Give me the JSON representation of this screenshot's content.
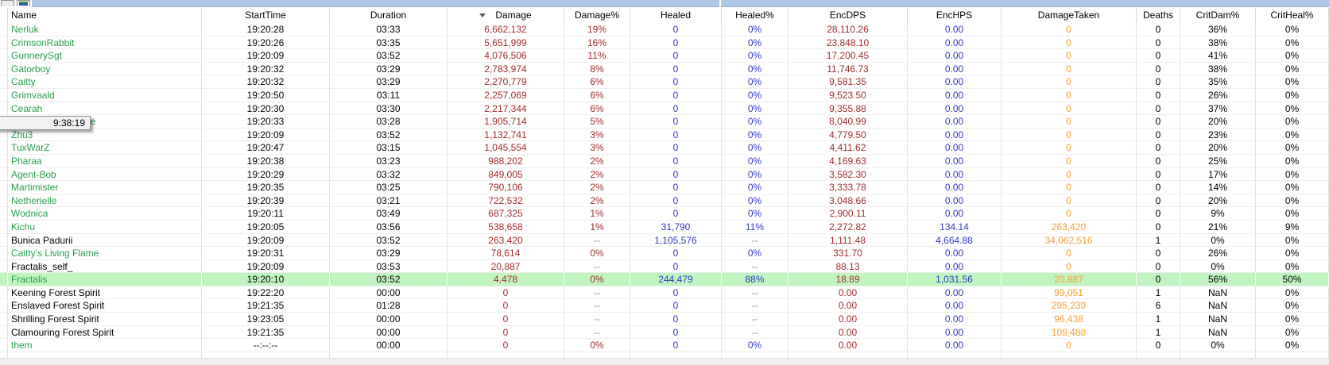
{
  "topbar": {
    "tabs": [
      {
        "icon": "blank-tab-icon"
      },
      {
        "icon": "graph-tab-icon"
      }
    ]
  },
  "tooltip": {
    "text": "9:38:19"
  },
  "colors": {
    "name_green": "#28a04c",
    "damage_red": "#a02c2c",
    "heal_blue": "#3038c8",
    "taken_orange": "#f7a035",
    "dash_lavender": "#8484cf",
    "selected_row_bg": "#c1f4c0",
    "topbar_blue": "#adc7e7"
  },
  "table": {
    "sort": {
      "column": "Damage",
      "direction": "descending"
    },
    "columns": [
      {
        "key": "name",
        "label": "Name"
      },
      {
        "key": "start",
        "label": "StartTime"
      },
      {
        "key": "dur",
        "label": "Duration"
      },
      {
        "key": "dmg",
        "label": "Damage"
      },
      {
        "key": "dmgpct",
        "label": "Damage%"
      },
      {
        "key": "healed",
        "label": "Healed"
      },
      {
        "key": "healedpct",
        "label": "Healed%"
      },
      {
        "key": "encdps",
        "label": "EncDPS"
      },
      {
        "key": "enchps",
        "label": "EncHPS"
      },
      {
        "key": "dmgtaken",
        "label": "DamageTaken"
      },
      {
        "key": "deaths",
        "label": "Deaths"
      },
      {
        "key": "critdam",
        "label": "CritDam%"
      },
      {
        "key": "critheal",
        "label": "CritHeal%"
      }
    ],
    "rows": [
      {
        "name": "Nerluk",
        "name_color": "green",
        "start": "19:20:28",
        "dur": "03:33",
        "dmg": "6,662,132",
        "dmgpct": "19%",
        "healed": "0",
        "healedpct": "0%",
        "encdps": "28,110.26",
        "enchps": "0.00",
        "dmgtaken": "0",
        "deaths": "0",
        "critdam": "36%",
        "critheal": "0%"
      },
      {
        "name": "CrimsonRabbit",
        "name_color": "green",
        "start": "19:20:26",
        "dur": "03:35",
        "dmg": "5,651,999",
        "dmgpct": "16%",
        "healed": "0",
        "healedpct": "0%",
        "encdps": "23,848.10",
        "enchps": "0.00",
        "dmgtaken": "0",
        "deaths": "0",
        "critdam": "38%",
        "critheal": "0%"
      },
      {
        "name": "GunnerySgt",
        "name_color": "green",
        "start": "19:20:09",
        "dur": "03:52",
        "dmg": "4,076,506",
        "dmgpct": "11%",
        "healed": "0",
        "healedpct": "0%",
        "encdps": "17,200.45",
        "enchps": "0.00",
        "dmgtaken": "0",
        "deaths": "0",
        "critdam": "41%",
        "critheal": "0%"
      },
      {
        "name": "Gatorboy",
        "name_color": "green",
        "start": "19:20:32",
        "dur": "03:29",
        "dmg": "2,783,974",
        "dmgpct": "8%",
        "healed": "0",
        "healedpct": "0%",
        "encdps": "11,746.73",
        "enchps": "0.00",
        "dmgtaken": "0",
        "deaths": "0",
        "critdam": "38%",
        "critheal": "0%"
      },
      {
        "name": "Caitty",
        "name_color": "green",
        "start": "19:20:32",
        "dur": "03:29",
        "dmg": "2,270,779",
        "dmgpct": "6%",
        "healed": "0",
        "healedpct": "0%",
        "encdps": "9,581.35",
        "enchps": "0.00",
        "dmgtaken": "0",
        "deaths": "0",
        "critdam": "35%",
        "critheal": "0%"
      },
      {
        "name": "Grimvaald",
        "name_color": "green",
        "start": "19:20:50",
        "dur": "03:11",
        "dmg": "2,257,069",
        "dmgpct": "6%",
        "healed": "0",
        "healedpct": "0%",
        "encdps": "9,523.50",
        "enchps": "0.00",
        "dmgtaken": "0",
        "deaths": "0",
        "critdam": "26%",
        "critheal": "0%"
      },
      {
        "name": "Cearah",
        "name_color": "green",
        "start": "19:20:30",
        "dur": "03:30",
        "dmg": "2,217,344",
        "dmgpct": "6%",
        "healed": "0",
        "healedpct": "0%",
        "encdps": "9,355.88",
        "enchps": "0.00",
        "dmgtaken": "0",
        "deaths": "0",
        "critdam": "37%",
        "critheal": "0%"
      },
      {
        "name": "e",
        "name_partial": true,
        "name_color": "green",
        "start": "19:20:33",
        "dur": "03:28",
        "dmg": "1,905,714",
        "dmgpct": "5%",
        "healed": "0",
        "healedpct": "0%",
        "encdps": "8,040.99",
        "enchps": "0.00",
        "dmgtaken": "0",
        "deaths": "0",
        "critdam": "20%",
        "critheal": "0%"
      },
      {
        "name": "Zhu3",
        "name_color": "green",
        "start": "19:20:09",
        "dur": "03:52",
        "dmg": "1,132,741",
        "dmgpct": "3%",
        "healed": "0",
        "healedpct": "0%",
        "encdps": "4,779.50",
        "enchps": "0.00",
        "dmgtaken": "0",
        "deaths": "0",
        "critdam": "23%",
        "critheal": "0%"
      },
      {
        "name": "TuxWarZ",
        "name_color": "green",
        "start": "19:20:47",
        "dur": "03:15",
        "dmg": "1,045,554",
        "dmgpct": "3%",
        "healed": "0",
        "healedpct": "0%",
        "encdps": "4,411.62",
        "enchps": "0.00",
        "dmgtaken": "0",
        "deaths": "0",
        "critdam": "20%",
        "critheal": "0%"
      },
      {
        "name": "Pharaa",
        "name_color": "green",
        "start": "19:20:38",
        "dur": "03:23",
        "dmg": "988,202",
        "dmgpct": "2%",
        "healed": "0",
        "healedpct": "0%",
        "encdps": "4,169.63",
        "enchps": "0.00",
        "dmgtaken": "0",
        "deaths": "0",
        "critdam": "25%",
        "critheal": "0%"
      },
      {
        "name": "Agent-Bob",
        "name_color": "green",
        "start": "19:20:29",
        "dur": "03:32",
        "dmg": "849,005",
        "dmgpct": "2%",
        "healed": "0",
        "healedpct": "0%",
        "encdps": "3,582.30",
        "enchps": "0.00",
        "dmgtaken": "0",
        "deaths": "0",
        "critdam": "17%",
        "critheal": "0%"
      },
      {
        "name": "Martimister",
        "name_color": "green",
        "start": "19:20:35",
        "dur": "03:25",
        "dmg": "790,106",
        "dmgpct": "2%",
        "healed": "0",
        "healedpct": "0%",
        "encdps": "3,333.78",
        "enchps": "0.00",
        "dmgtaken": "0",
        "deaths": "0",
        "critdam": "14%",
        "critheal": "0%"
      },
      {
        "name": "Netherielle",
        "name_color": "green",
        "start": "19:20:39",
        "dur": "03:21",
        "dmg": "722,532",
        "dmgpct": "2%",
        "healed": "0",
        "healedpct": "0%",
        "encdps": "3,048.66",
        "enchps": "0.00",
        "dmgtaken": "0",
        "deaths": "0",
        "critdam": "20%",
        "critheal": "0%"
      },
      {
        "name": "Wodnica",
        "name_color": "green",
        "start": "19:20:11",
        "dur": "03:49",
        "dmg": "687,325",
        "dmgpct": "1%",
        "healed": "0",
        "healedpct": "0%",
        "encdps": "2,900.11",
        "enchps": "0.00",
        "dmgtaken": "0",
        "deaths": "0",
        "critdam": "9%",
        "critheal": "0%"
      },
      {
        "name": "Kichu",
        "name_color": "green",
        "start": "19:20:05",
        "dur": "03:56",
        "dmg": "538,658",
        "dmgpct": "1%",
        "healed": "31,790",
        "healedpct": "11%",
        "encdps": "2,272.82",
        "enchps": "134.14",
        "dmgtaken": "263,420",
        "deaths": "0",
        "critdam": "21%",
        "critheal": "9%"
      },
      {
        "name": "Bunica Padurii",
        "name_color": "black",
        "start": "19:20:09",
        "dur": "03:52",
        "dmg": "263,420",
        "dmgpct": "--",
        "healed": "1,105,576",
        "healedpct": "--",
        "encdps": "1,111.48",
        "enchps": "4,664.88",
        "dmgtaken": "34,062,516",
        "deaths": "1",
        "critdam": "0%",
        "critheal": "0%"
      },
      {
        "name": "Caitty's Living Flame",
        "name_color": "green",
        "start": "19:20:31",
        "dur": "03:29",
        "dmg": "78,614",
        "dmgpct": "0%",
        "healed": "0",
        "healedpct": "0%",
        "encdps": "331.70",
        "enchps": "0.00",
        "dmgtaken": "0",
        "deaths": "0",
        "critdam": "26%",
        "critheal": "0%"
      },
      {
        "name": "Fractalis_self_",
        "name_color": "black",
        "start": "19:20:09",
        "dur": "03:53",
        "dmg": "20,887",
        "dmgpct": "--",
        "healed": "0",
        "healedpct": "--",
        "encdps": "88.13",
        "enchps": "0.00",
        "dmgtaken": "0",
        "deaths": "0",
        "critdam": "0%",
        "critheal": "0%"
      },
      {
        "name": "Fractalis",
        "name_color": "green",
        "selected": true,
        "start": "19:20:10",
        "dur": "03:52",
        "dmg": "4,478",
        "dmgpct": "0%",
        "healed": "244,479",
        "healedpct": "88%",
        "encdps": "18.89",
        "enchps": "1,031.56",
        "dmgtaken": "20,887",
        "deaths": "0",
        "critdam": "56%",
        "critheal": "50%"
      },
      {
        "name": "Keening Forest Spirit",
        "name_color": "black",
        "start": "19:22:20",
        "dur": "00:00",
        "dmg": "0",
        "dmgpct": "--",
        "healed": "0",
        "healedpct": "--",
        "encdps": "0.00",
        "enchps": "0.00",
        "dmgtaken": "99,051",
        "deaths": "1",
        "critdam": "NaN",
        "critheal": "0%"
      },
      {
        "name": "Enslaved Forest Spirit",
        "name_color": "black",
        "start": "19:21:35",
        "dur": "01:28",
        "dmg": "0",
        "dmgpct": "--",
        "healed": "0",
        "healedpct": "--",
        "encdps": "0.00",
        "enchps": "0.00",
        "dmgtaken": "295,239",
        "deaths": "6",
        "critdam": "NaN",
        "critheal": "0%"
      },
      {
        "name": "Shrilling Forest Spirit",
        "name_color": "black",
        "start": "19:23:05",
        "dur": "00:00",
        "dmg": "0",
        "dmgpct": "--",
        "healed": "0",
        "healedpct": "--",
        "encdps": "0.00",
        "enchps": "0.00",
        "dmgtaken": "96,438",
        "deaths": "1",
        "critdam": "NaN",
        "critheal": "0%"
      },
      {
        "name": "Clamouring Forest Spirit",
        "name_color": "black",
        "start": "19:21:35",
        "dur": "00:00",
        "dmg": "0",
        "dmgpct": "--",
        "healed": "0",
        "healedpct": "--",
        "encdps": "0.00",
        "enchps": "0.00",
        "dmgtaken": "109,488",
        "deaths": "1",
        "critdam": "NaN",
        "critheal": "0%"
      },
      {
        "name": "them",
        "name_color": "green",
        "start": "--:--:--",
        "dur": "00:00",
        "dmg": "0",
        "dmgpct": "0%",
        "healed": "0",
        "healedpct": "0%",
        "encdps": "0.00",
        "enchps": "0.00",
        "dmgtaken": "0",
        "deaths": "0",
        "critdam": "0%",
        "critheal": "0%"
      }
    ]
  }
}
